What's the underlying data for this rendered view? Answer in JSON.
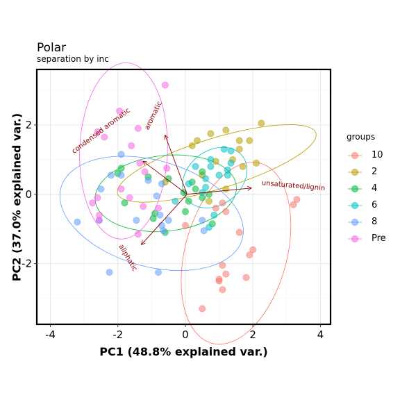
{
  "chart_data": {
    "type": "scatter",
    "title": "Polar",
    "subtitle": "separation by inc",
    "xlabel": "PC1 (48.8% explained var.)",
    "ylabel": "PC2 (37.0% explained var.)",
    "xlim": [
      -4.4,
      4.3
    ],
    "ylim": [
      -3.75,
      3.6
    ],
    "xticks": [
      -4,
      -2,
      0,
      2,
      4
    ],
    "yticks": [
      -2,
      0,
      2
    ],
    "grid": true,
    "legend": {
      "title": "groups",
      "position": "right"
    },
    "series": [
      {
        "name": "10",
        "color": "#F8766D",
        "points": [
          [
            1.1,
            -0.25
          ],
          [
            0.9,
            -0.4
          ],
          [
            1.2,
            -0.5
          ],
          [
            0.0,
            -0.9
          ],
          [
            3.3,
            -0.15
          ],
          [
            3.2,
            -0.3
          ],
          [
            1.6,
            -1.1
          ],
          [
            2.0,
            -1.6
          ],
          [
            1.9,
            -1.75
          ],
          [
            1.1,
            -2.05
          ],
          [
            1.2,
            -2.3
          ],
          [
            1.0,
            -2.45
          ],
          [
            1.8,
            -2.4
          ],
          [
            1.0,
            -2.5
          ],
          [
            1.1,
            -2.75
          ],
          [
            0.5,
            -3.3
          ]
        ]
      },
      {
        "name": "2",
        "color": "#B79F00",
        "points": [
          [
            2.25,
            2.05
          ],
          [
            1.2,
            1.85
          ],
          [
            0.75,
            1.75
          ],
          [
            0.35,
            1.55
          ],
          [
            1.6,
            1.55
          ],
          [
            1.9,
            1.55
          ],
          [
            0.2,
            1.4
          ],
          [
            1.6,
            1.3
          ],
          [
            1.4,
            1.0
          ],
          [
            0.9,
            0.95
          ],
          [
            2.1,
            0.9
          ],
          [
            1.7,
            0.8
          ],
          [
            0.5,
            0.55
          ],
          [
            1.2,
            0.15
          ],
          [
            0.7,
            -0.2
          ],
          [
            -0.6,
            0.35
          ]
        ]
      },
      {
        "name": "4",
        "color": "#00BA38",
        "points": [
          [
            -1.9,
            0.75
          ],
          [
            -2.0,
            0.6
          ],
          [
            -1.1,
            0.5
          ],
          [
            0.5,
            0.65
          ],
          [
            -0.5,
            0.45
          ],
          [
            0.2,
            0.35
          ],
          [
            0.3,
            0.15
          ],
          [
            0.5,
            -0.1
          ],
          [
            -0.05,
            0.05
          ],
          [
            0.7,
            0.0
          ],
          [
            0.1,
            -0.2
          ],
          [
            -1.8,
            -0.25
          ],
          [
            -0.9,
            -0.55
          ],
          [
            0.0,
            -0.5
          ],
          [
            -0.95,
            -0.7
          ],
          [
            0.8,
            -0.85
          ],
          [
            -0.6,
            -1.1
          ]
        ]
      },
      {
        "name": "6",
        "color": "#00BFC4",
        "points": [
          [
            1.35,
            1.25
          ],
          [
            1.15,
            1.3
          ],
          [
            0.75,
            1.0
          ],
          [
            1.35,
            0.9
          ],
          [
            1.25,
            0.7
          ],
          [
            1.25,
            0.55
          ],
          [
            1.0,
            0.55
          ],
          [
            0.3,
            0.8
          ],
          [
            0.6,
            0.45
          ],
          [
            0.75,
            0.8
          ],
          [
            0.6,
            0.2
          ],
          [
            0.1,
            0.3
          ],
          [
            0.5,
            0.05
          ],
          [
            0.85,
            -0.6
          ],
          [
            -0.3,
            -0.2
          ],
          [
            0.7,
            -0.95
          ]
        ]
      },
      {
        "name": "8",
        "color": "#619CFF",
        "points": [
          [
            -1.9,
            1.15
          ],
          [
            -1.9,
            0.55
          ],
          [
            -2.2,
            0.55
          ],
          [
            -2.5,
            0.15
          ],
          [
            -1.1,
            0.4
          ],
          [
            -0.7,
            0.3
          ],
          [
            -0.85,
            -0.05
          ],
          [
            -0.75,
            -0.6
          ],
          [
            -0.5,
            -0.75
          ],
          [
            -1.45,
            -0.75
          ],
          [
            -2.55,
            -0.75
          ],
          [
            -3.2,
            -0.8
          ],
          [
            -0.7,
            -0.9
          ],
          [
            -0.65,
            -1.05
          ],
          [
            0.55,
            -1.05
          ],
          [
            0.5,
            -0.75
          ],
          [
            -2.25,
            -2.25
          ],
          [
            -0.8,
            -2.25
          ]
        ]
      },
      {
        "name": "Pre",
        "color": "#F564E3",
        "points": [
          [
            -0.6,
            3.15
          ],
          [
            -1.95,
            2.4
          ],
          [
            -1.4,
            1.9
          ],
          [
            -1.6,
            1.4
          ],
          [
            -2.6,
            1.8
          ],
          [
            -2.4,
            1.65
          ],
          [
            -1.35,
            0.9
          ],
          [
            -1.2,
            0.65
          ],
          [
            -0.55,
            0.75
          ],
          [
            -1.9,
            0.15
          ],
          [
            -2.6,
            -0.1
          ],
          [
            -2.75,
            -0.25
          ],
          [
            -1.65,
            -0.1
          ],
          [
            -1.25,
            -0.35
          ],
          [
            -0.8,
            -0.4
          ],
          [
            -2.55,
            -0.6
          ],
          [
            -2.55,
            -0.75
          ],
          [
            -1.4,
            -1.15
          ]
        ]
      }
    ],
    "ellipses": [
      {
        "group": "10",
        "center": [
          1.5,
          -1.7
        ],
        "rx": 2.76,
        "ry": 1.51,
        "angle": 75
      },
      {
        "group": "2",
        "center": [
          0.93,
          0.89
        ],
        "rx": 3.07,
        "ry": 0.75,
        "angle": 17
      },
      {
        "group": "4",
        "center": [
          -0.58,
          0.03
        ],
        "rx": 2.1,
        "ry": 1.12,
        "angle": 6
      },
      {
        "group": "6",
        "center": [
          0.87,
          0.48
        ],
        "rx": 1.04,
        "ry": 0.8,
        "angle": 38
      },
      {
        "group": "8",
        "center": [
          -1.0,
          -0.55
        ],
        "rx": 2.79,
        "ry": 1.57,
        "angle": -16
      },
      {
        "group": "Pre",
        "center": [
          -1.83,
          1.25
        ],
        "rx": 2.61,
        "ry": 1.3,
        "angle": 88
      }
    ],
    "loadings": [
      {
        "label": "unsaturated/lignin",
        "end": [
          1.95,
          0.18
        ],
        "label_pos": [
          3.2,
          0.25
        ],
        "angle": -5
      },
      {
        "label": "aromatic",
        "end": [
          -0.6,
          1.7
        ],
        "label_pos": [
          -0.95,
          2.27
        ],
        "angle": 64
      },
      {
        "label": "condensed aromatic",
        "end": [
          -1.25,
          0.95
        ],
        "label_pos": [
          -2.5,
          1.83
        ],
        "angle": 37
      },
      {
        "label": "aliphatic",
        "end": [
          -1.3,
          -1.45
        ],
        "label_pos": [
          -1.7,
          -1.83
        ],
        "angle": -60
      }
    ],
    "loading_origin": [
      0.05,
      0.0
    ],
    "loading_color": "#8B0000"
  }
}
